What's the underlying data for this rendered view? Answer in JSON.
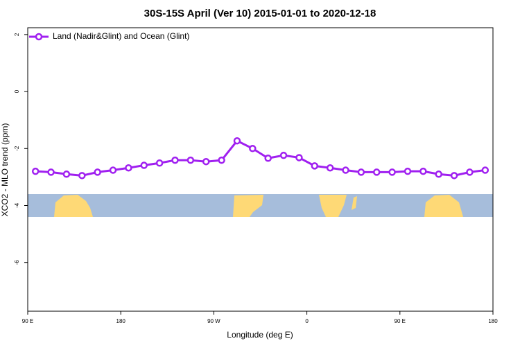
{
  "chart_data": {
    "type": "line",
    "title": "30S-15S April (Ver 10)   2015-01-01 to 2020-12-18",
    "x_label": "Longitude (deg E)",
    "y_label": "XCO2 - MLO trend (ppm)",
    "x": [
      97.5,
      112.5,
      127.5,
      142.5,
      157.5,
      172.5,
      187.5,
      202.5,
      217.5,
      232.5,
      247.5,
      262.5,
      277.5,
      292.5,
      307.5,
      322.5,
      337.5,
      352.5,
      367.5,
      382.5,
      397.5,
      412.5,
      427.5,
      442.5,
      457.5,
      472.5,
      487.5,
      502.5,
      517.5,
      532.5
    ],
    "series": [
      {
        "name": "Land (Nadir&Glint) and Ocean (Glint)",
        "color": "#a020f0",
        "values": [
          -2.8,
          -2.83,
          -2.9,
          -2.95,
          -2.83,
          -2.76,
          -2.68,
          -2.59,
          -2.51,
          -2.41,
          -2.41,
          -2.46,
          -2.41,
          -1.73,
          -2.0,
          -2.34,
          -2.24,
          -2.32,
          -2.61,
          -2.68,
          -2.76,
          -2.83,
          -2.83,
          -2.83,
          -2.8,
          -2.8,
          -2.9,
          -2.95,
          -2.83,
          -2.76
        ]
      }
    ],
    "xlim": [
      90,
      540
    ],
    "xticks": [
      {
        "value": 90,
        "label": "90 E"
      },
      180,
      {
        "value": 270,
        "label": "90 W"
      },
      {
        "value": 360,
        "label": "0"
      },
      {
        "value": 450,
        "label": "90 E"
      },
      {
        "value": 540,
        "label": "180"
      }
    ],
    "ylim": [
      -7.71,
      2.24
    ],
    "yticks": [
      2,
      0,
      -2,
      -4,
      -6
    ],
    "legend": "top-left"
  }
}
